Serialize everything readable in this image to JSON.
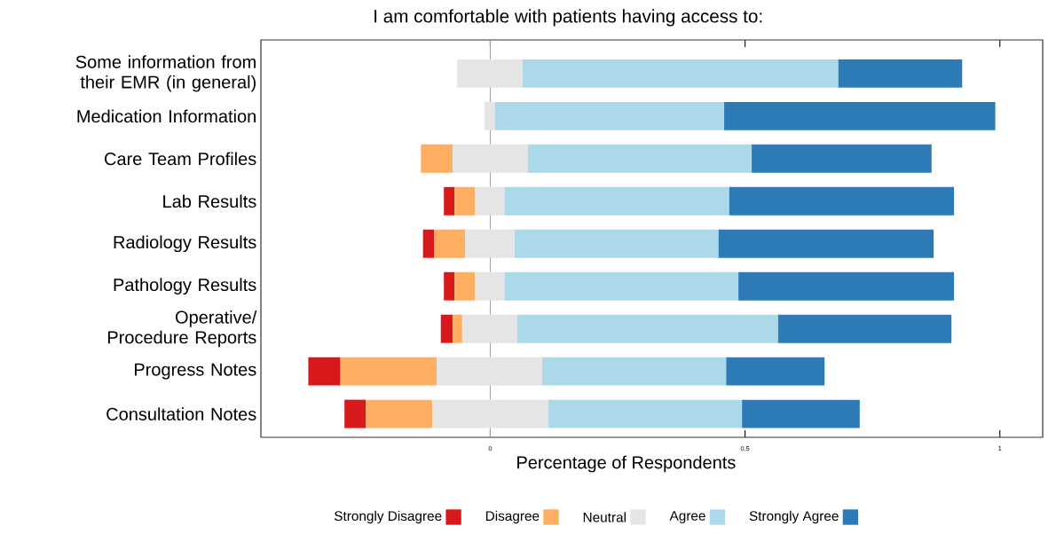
{
  "chart_data": {
    "type": "bar",
    "orientation": "horizontal",
    "title": "I am comfortable with patients having access to:",
    "xlabel": "Percentage of Respondents",
    "categories": [
      "Some information from their EMR (in general)",
      "Medication Information",
      "Care Team Profiles",
      "Lab Results",
      "Radiology Results",
      "Pathology Results",
      "Operative/ Procedure Reports",
      "Progress Notes",
      "Consultation Notes"
    ],
    "series": [
      {
        "name": "Strongly Disagree",
        "color": "#d7191c",
        "values": [
          null,
          null,
          null,
          0.021,
          0.022,
          0.021,
          0.023,
          0.063,
          0.042
        ],
        "base": [
          null,
          null,
          null,
          -0.091,
          -0.132,
          -0.091,
          -0.097,
          -0.357,
          -0.286
        ]
      },
      {
        "name": "Disagree",
        "color": "#fdae61",
        "values": [
          null,
          null,
          0.062,
          0.04,
          0.061,
          0.04,
          0.019,
          0.189,
          0.13
        ],
        "base": [
          null,
          null,
          -0.136,
          -0.07,
          -0.11,
          -0.07,
          -0.074,
          -0.294,
          -0.244
        ]
      },
      {
        "name": "Neutral",
        "color": "#e5e5e5",
        "values": [
          0.128,
          0.02,
          0.148,
          0.058,
          0.097,
          0.058,
          0.108,
          0.207,
          0.228
        ],
        "base": [
          -0.065,
          -0.011,
          -0.074,
          -0.03,
          -0.049,
          -0.03,
          -0.055,
          -0.105,
          -0.114
        ]
      },
      {
        "name": "Agree",
        "color": "#abd9e9",
        "values": [
          0.62,
          0.45,
          0.439,
          0.441,
          0.4,
          0.459,
          0.512,
          0.361,
          0.38
        ],
        "base": [
          0.063,
          0.009,
          0.074,
          0.028,
          0.048,
          0.028,
          0.053,
          0.102,
          0.114
        ]
      },
      {
        "name": "Strongly Agree",
        "color": "#2c7bb6",
        "values": [
          0.243,
          0.532,
          0.353,
          0.441,
          0.422,
          0.423,
          0.34,
          0.193,
          0.231
        ],
        "base": [
          0.683,
          0.459,
          0.513,
          0.469,
          0.448,
          0.487,
          0.565,
          0.463,
          0.494
        ]
      }
    ],
    "xlim": [
      -0.45,
      1.084
    ],
    "xticks": [
      0,
      0.5,
      1
    ],
    "ref_lines": [
      {
        "axis": "x",
        "value": 0,
        "color": "#a0a0a0"
      }
    ],
    "legend": "bottom"
  }
}
